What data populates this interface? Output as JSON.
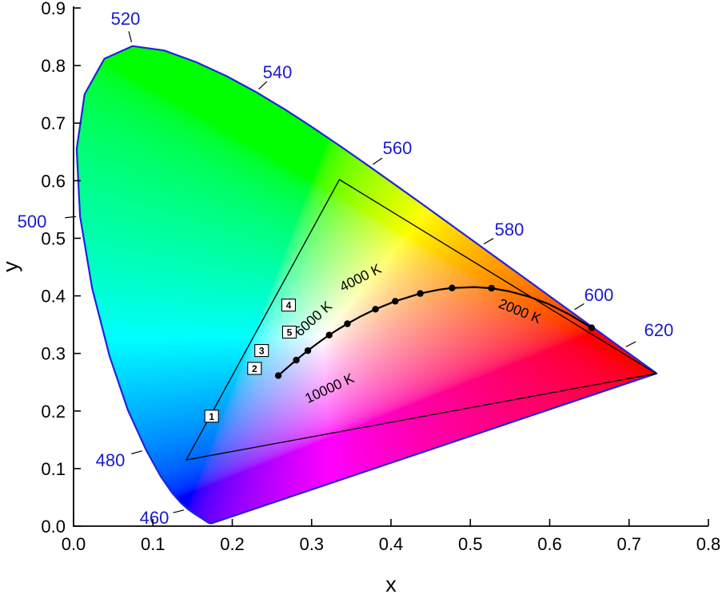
{
  "page": {
    "background": "#ffffff"
  },
  "chart_data": {
    "type": "scatter",
    "subtype": "CIE 1931 xy chromaticity diagram with Planckian locus and gamut triangle",
    "title": "",
    "xlabel": "x",
    "ylabel": "y",
    "xlim": [
      0.0,
      0.8
    ],
    "ylim": [
      0.0,
      0.9
    ],
    "grid": false,
    "x_ticks": [
      "0.0",
      "0.1",
      "0.2",
      "0.3",
      "0.4",
      "0.5",
      "0.6",
      "0.7",
      "0.8"
    ],
    "y_ticks": [
      "0.0",
      "0.1",
      "0.2",
      "0.3",
      "0.4",
      "0.5",
      "0.6",
      "0.7",
      "0.8",
      "0.9"
    ],
    "colors": {
      "locus_outline": "#2222dd",
      "wavelength_labels": "#1a1acc",
      "axis": "#000000",
      "planckian_curve": "#000000",
      "gamut_triangle": "#000000",
      "marker_box_fill": "#ffffff"
    },
    "spectral_locus": [
      [
        380,
        0.1741,
        0.005
      ],
      [
        390,
        0.1738,
        0.0049
      ],
      [
        400,
        0.1733,
        0.0048
      ],
      [
        410,
        0.1726,
        0.0048
      ],
      [
        420,
        0.1714,
        0.0051
      ],
      [
        425,
        0.1703,
        0.0058
      ],
      [
        430,
        0.1689,
        0.0069
      ],
      [
        435,
        0.1669,
        0.0086
      ],
      [
        440,
        0.1644,
        0.0109
      ],
      [
        445,
        0.1611,
        0.0138
      ],
      [
        450,
        0.1566,
        0.0177
      ],
      [
        455,
        0.151,
        0.0227
      ],
      [
        460,
        0.144,
        0.0297
      ],
      [
        465,
        0.1355,
        0.0399
      ],
      [
        470,
        0.1241,
        0.0578
      ],
      [
        475,
        0.1096,
        0.0868
      ],
      [
        480,
        0.0913,
        0.1327
      ],
      [
        485,
        0.0687,
        0.2007
      ],
      [
        490,
        0.0454,
        0.295
      ],
      [
        495,
        0.0235,
        0.4127
      ],
      [
        500,
        0.0082,
        0.5384
      ],
      [
        505,
        0.0039,
        0.6548
      ],
      [
        510,
        0.0139,
        0.7502
      ],
      [
        515,
        0.0389,
        0.812
      ],
      [
        520,
        0.0743,
        0.8338
      ],
      [
        525,
        0.1142,
        0.8262
      ],
      [
        530,
        0.1547,
        0.8059
      ],
      [
        535,
        0.1929,
        0.7816
      ],
      [
        540,
        0.2296,
        0.7543
      ],
      [
        545,
        0.2658,
        0.7243
      ],
      [
        550,
        0.3016,
        0.6923
      ],
      [
        555,
        0.3373,
        0.6589
      ],
      [
        560,
        0.3731,
        0.6245
      ],
      [
        565,
        0.4087,
        0.5896
      ],
      [
        570,
        0.4441,
        0.5547
      ],
      [
        575,
        0.4788,
        0.5202
      ],
      [
        580,
        0.5125,
        0.4866
      ],
      [
        585,
        0.5448,
        0.4544
      ],
      [
        590,
        0.5752,
        0.4242
      ],
      [
        595,
        0.6029,
        0.3965
      ],
      [
        600,
        0.627,
        0.3725
      ],
      [
        605,
        0.6482,
        0.3514
      ],
      [
        610,
        0.6658,
        0.334
      ],
      [
        615,
        0.6801,
        0.3197
      ],
      [
        620,
        0.6915,
        0.3083
      ],
      [
        625,
        0.7006,
        0.2993
      ],
      [
        630,
        0.7079,
        0.292
      ],
      [
        635,
        0.714,
        0.2859
      ],
      [
        640,
        0.719,
        0.2809
      ],
      [
        645,
        0.723,
        0.277
      ],
      [
        650,
        0.726,
        0.274
      ],
      [
        660,
        0.73,
        0.27
      ],
      [
        670,
        0.732,
        0.268
      ],
      [
        680,
        0.7334,
        0.2666
      ],
      [
        690,
        0.7344,
        0.2656
      ],
      [
        700,
        0.7347,
        0.2653
      ]
    ],
    "wavelength_labels": [
      {
        "nm": "460",
        "x": 0.144,
        "y": 0.0297,
        "ax": 193,
        "ay": 656
      },
      {
        "nm": "480",
        "x": 0.0913,
        "y": 0.1327,
        "ax": 138,
        "ay": 584
      },
      {
        "nm": "500",
        "x": 0.0082,
        "y": 0.5384,
        "ax": 40,
        "ay": 285
      },
      {
        "nm": "520",
        "x": 0.0743,
        "y": 0.8338,
        "ax": 157,
        "ay": 31
      },
      {
        "nm": "540",
        "x": 0.2296,
        "y": 0.7543,
        "ax": 347,
        "ay": 98
      },
      {
        "nm": "560",
        "x": 0.3731,
        "y": 0.6245,
        "ax": 497,
        "ay": 193
      },
      {
        "nm": "580",
        "x": 0.5125,
        "y": 0.4866,
        "ax": 637,
        "ay": 295
      },
      {
        "nm": "600",
        "x": 0.627,
        "y": 0.3725,
        "ax": 749,
        "ay": 377
      },
      {
        "nm": "620",
        "x": 0.6915,
        "y": 0.3083,
        "ax": 824,
        "ay": 421
      }
    ],
    "gamut_triangle": [
      [
        0.335,
        0.602
      ],
      [
        0.734,
        0.265
      ],
      [
        0.142,
        0.115
      ]
    ],
    "planckian_locus": [
      [
        20000,
        0.258,
        0.2616
      ],
      [
        15000,
        0.266,
        0.2713
      ],
      [
        12000,
        0.2734,
        0.28
      ],
      [
        10000,
        0.2807,
        0.2884
      ],
      [
        9000,
        0.2869,
        0.2956
      ],
      [
        8000,
        0.2952,
        0.3048
      ],
      [
        7500,
        0.3004,
        0.3103
      ],
      [
        7000,
        0.3064,
        0.3166
      ],
      [
        6500,
        0.3135,
        0.3237
      ],
      [
        6000,
        0.3221,
        0.3318
      ],
      [
        5500,
        0.3325,
        0.3411
      ],
      [
        5000,
        0.3451,
        0.3516
      ],
      [
        4500,
        0.3608,
        0.3636
      ],
      [
        4000,
        0.3805,
        0.3768
      ],
      [
        3500,
        0.4053,
        0.3907
      ],
      [
        3000,
        0.4369,
        0.4041
      ],
      [
        2700,
        0.4599,
        0.4106
      ],
      [
        2500,
        0.477,
        0.4137
      ],
      [
        2200,
        0.5056,
        0.4152
      ],
      [
        2000,
        0.5267,
        0.4133
      ],
      [
        1800,
        0.5492,
        0.4077
      ],
      [
        1600,
        0.574,
        0.3986
      ],
      [
        1400,
        0.5984,
        0.3859
      ],
      [
        1200,
        0.6249,
        0.3676
      ],
      [
        1000,
        0.6528,
        0.3444
      ]
    ],
    "planckian_dots": [
      [
        20000,
        0.258,
        0.2616
      ],
      [
        10000,
        0.2807,
        0.2884
      ],
      [
        8000,
        0.2952,
        0.3048
      ],
      [
        6000,
        0.3221,
        0.3318
      ],
      [
        5000,
        0.3451,
        0.3516
      ],
      [
        4000,
        0.3805,
        0.3768
      ],
      [
        3500,
        0.4053,
        0.3907
      ],
      [
        3000,
        0.4369,
        0.4041
      ],
      [
        2500,
        0.477,
        0.4137
      ],
      [
        2000,
        0.5267,
        0.4133
      ],
      [
        1000,
        0.6528,
        0.3444
      ]
    ],
    "temperature_labels": [
      {
        "text": "4000 K",
        "x": 0.362,
        "y": 0.43,
        "angle": -27
      },
      {
        "text": "6000 K",
        "x": 0.303,
        "y": 0.359,
        "angle": -42
      },
      {
        "text": "10000 K",
        "x": 0.323,
        "y": 0.238,
        "angle": -25
      },
      {
        "text": "2000 K",
        "x": 0.562,
        "y": 0.372,
        "angle": 22
      }
    ],
    "numbered_markers": [
      {
        "label": "1",
        "x": 0.174,
        "y": 0.191
      },
      {
        "label": "2",
        "x": 0.228,
        "y": 0.274
      },
      {
        "label": "3",
        "x": 0.237,
        "y": 0.305
      },
      {
        "label": "4",
        "x": 0.271,
        "y": 0.384
      },
      {
        "label": "5",
        "x": 0.272,
        "y": 0.337
      }
    ]
  }
}
